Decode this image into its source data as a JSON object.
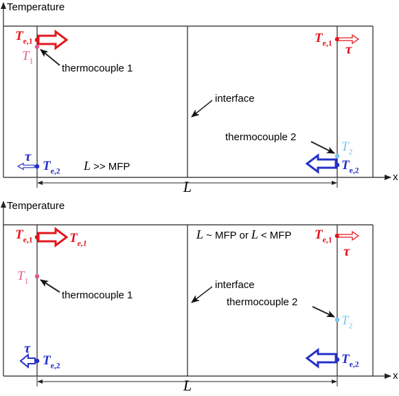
{
  "panels": [
    {
      "y_axis_label": "Temperature",
      "x_axis_label": "x",
      "te1_left": {
        "main": "T",
        "sub": "e,1"
      },
      "t1": {
        "main": "T",
        "sub": "1"
      },
      "thermocouple_1": "thermocouple 1",
      "interface": "interface",
      "thermocouple_2": "thermocouple 2",
      "t2": {
        "main": "T",
        "sub": "2"
      },
      "te2_right": {
        "main": "T",
        "sub": "e,2"
      },
      "te2_left": {
        "main": "T",
        "sub": "e,2"
      },
      "tau_left": "τ",
      "te1_right": {
        "main": "T",
        "sub": "e,1"
      },
      "tau_right": "τ",
      "condition": [
        "L",
        ">> MFP"
      ],
      "length": "L"
    },
    {
      "y_axis_label": "Temperature",
      "x_axis_label": "x",
      "te1_left": {
        "main": "T",
        "sub": "e,1"
      },
      "te1_left_out": {
        "main": "T",
        "sub": "e,1"
      },
      "t1": {
        "main": "T",
        "sub": "1"
      },
      "thermocouple_1": "thermocouple 1",
      "interface": "interface",
      "thermocouple_2": "thermocouple 2",
      "t2": {
        "main": "T",
        "sub": "2"
      },
      "te2_right": {
        "main": "T",
        "sub": "e,2"
      },
      "te2_left": {
        "main": "T",
        "sub": "e,2"
      },
      "tau_left": "τ",
      "te1_right": {
        "main": "T",
        "sub": "e,1"
      },
      "tau_right": "τ",
      "condition": [
        "L",
        "~ MFP or",
        "L",
        "< MFP"
      ],
      "length": "L"
    }
  ]
}
